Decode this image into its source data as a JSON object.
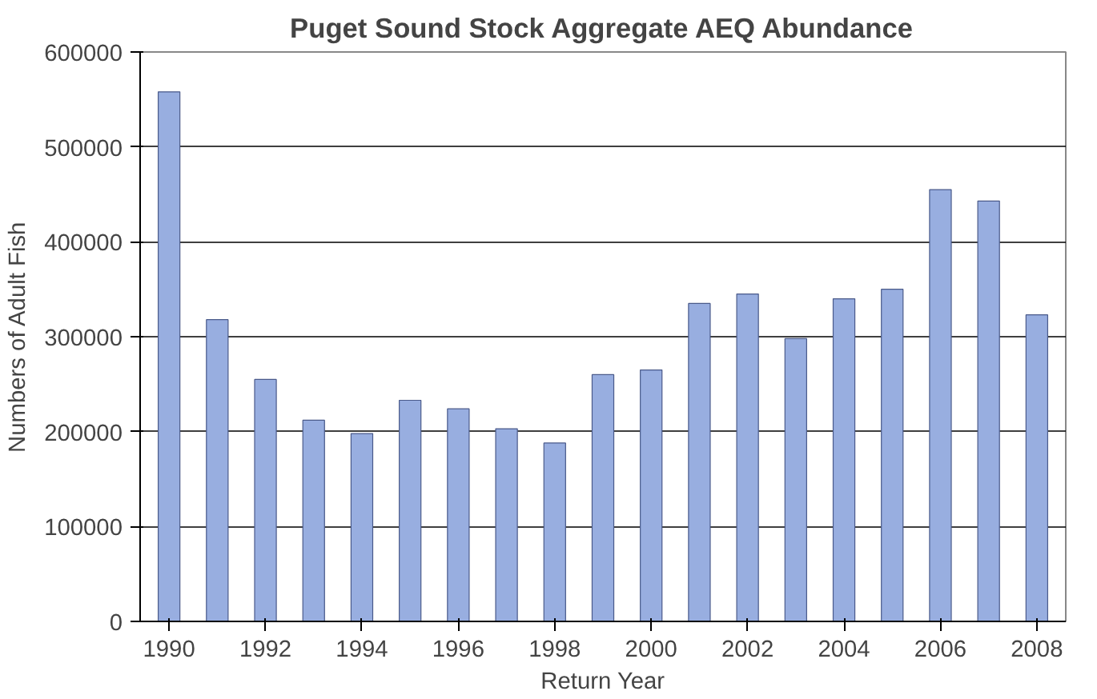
{
  "chart_data": {
    "type": "bar",
    "title": "Puget Sound Stock Aggregate AEQ Abundance",
    "xlabel": "Return Year",
    "ylabel": "Numbers of Adult Fish",
    "x": [
      1990,
      1991,
      1992,
      1993,
      1994,
      1995,
      1996,
      1997,
      1998,
      1999,
      2000,
      2001,
      2002,
      2003,
      2004,
      2005,
      2006,
      2007,
      2008
    ],
    "values": [
      558000,
      318000,
      255000,
      212000,
      198000,
      233000,
      224000,
      203000,
      188000,
      260000,
      265000,
      335000,
      345000,
      298000,
      340000,
      350000,
      455000,
      443000,
      323000
    ],
    "color": "#98aee0",
    "xlim": [
      1989.4,
      2008.6
    ],
    "xticks": [
      1990,
      1992,
      1994,
      1996,
      1998,
      2000,
      2002,
      2004,
      2006,
      2008
    ],
    "ylim": [
      0,
      600000
    ],
    "yticks": [
      0,
      100000,
      200000,
      300000,
      400000,
      500000,
      600000
    ],
    "grid": "y",
    "legend": false
  }
}
